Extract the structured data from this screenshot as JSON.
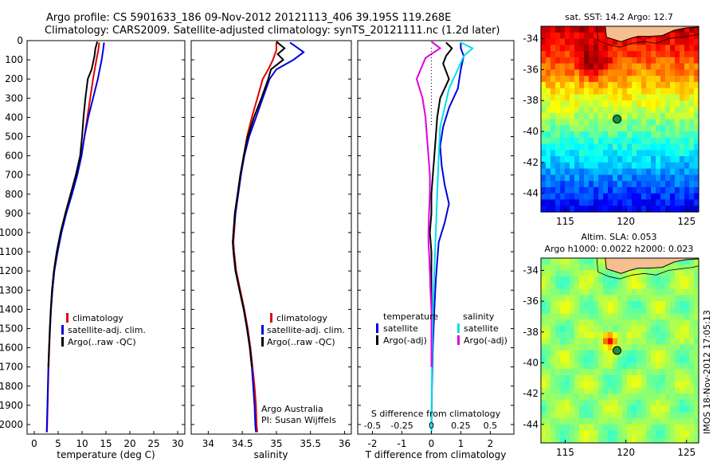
{
  "header": {
    "title_line1": "Argo profile: CS 5901633_186 09-Nov-2012 20121113_406 39.195S 119.268E",
    "title_line2": "Climatology: CARS2009. Satellite-adjusted climatology: synTS_20121111.nc (1.2d later)"
  },
  "side_stamp": "IMOS 18-Nov-2012 17:05:13",
  "colors": {
    "climatology": "#e00000",
    "satellite": "#0000dd",
    "argo": "#000000",
    "salinity_satellite": "#00e0e8",
    "salinity_argo": "#e000e0",
    "land": "#f5bf8f"
  },
  "chart_data": [
    {
      "id": "temperature",
      "type": "line",
      "xlabel": "temperature (deg C)",
      "ylabel": "",
      "xlim": [
        -1.5,
        31.5
      ],
      "ylim": [
        2050,
        0
      ],
      "xticks": [
        0,
        5,
        10,
        15,
        20,
        25,
        30
      ],
      "yticks": [
        0,
        100,
        200,
        300,
        400,
        500,
        600,
        700,
        800,
        900,
        1000,
        1100,
        1200,
        1300,
        1400,
        1500,
        1600,
        1700,
        1800,
        1900,
        2000
      ],
      "legend": [
        "climatology",
        "satellite-adj. clim.",
        "Argo(..raw -QC)"
      ],
      "series": [
        {
          "name": "climatology",
          "color": "#e00000",
          "points": [
            [
              13.6,
              10
            ],
            [
              13.4,
              50
            ],
            [
              13.0,
              100
            ],
            [
              12.3,
              200
            ],
            [
              11.7,
              300
            ],
            [
              11.1,
              400
            ],
            [
              10.5,
              500
            ],
            [
              9.8,
              600
            ],
            [
              8.9,
              700
            ],
            [
              7.8,
              800
            ],
            [
              6.6,
              900
            ],
            [
              5.6,
              1000
            ],
            [
              4.8,
              1100
            ],
            [
              4.2,
              1200
            ],
            [
              3.8,
              1300
            ],
            [
              3.5,
              1400
            ],
            [
              3.3,
              1500
            ],
            [
              3.15,
              1600
            ],
            [
              3.0,
              1700
            ],
            [
              2.9,
              1800
            ],
            [
              2.8,
              1900
            ],
            [
              2.7,
              2000
            ],
            [
              2.65,
              2040
            ]
          ]
        },
        {
          "name": "satellite-adj. clim.",
          "color": "#0000dd",
          "points": [
            [
              14.6,
              10
            ],
            [
              14.4,
              50
            ],
            [
              14.1,
              100
            ],
            [
              13.3,
              200
            ],
            [
              12.3,
              300
            ],
            [
              11.3,
              400
            ],
            [
              10.5,
              500
            ],
            [
              9.9,
              600
            ],
            [
              9.0,
              700
            ],
            [
              7.9,
              800
            ],
            [
              6.7,
              900
            ],
            [
              5.7,
              1000
            ],
            [
              4.9,
              1100
            ],
            [
              4.2,
              1200
            ],
            [
              3.8,
              1300
            ],
            [
              3.5,
              1400
            ],
            [
              3.3,
              1500
            ],
            [
              3.1,
              1600
            ],
            [
              2.95,
              1700
            ],
            [
              2.85,
              1800
            ],
            [
              2.75,
              1900
            ],
            [
              2.65,
              2000
            ],
            [
              2.6,
              2040
            ]
          ]
        },
        {
          "name": "Argo(..raw -QC)",
          "color": "#000000",
          "points": [
            [
              13.2,
              5
            ],
            [
              12.8,
              40
            ],
            [
              12.6,
              80
            ],
            [
              12.0,
              150
            ],
            [
              11.2,
              200
            ],
            [
              10.7,
              300
            ],
            [
              10.3,
              400
            ],
            [
              10.0,
              500
            ],
            [
              9.6,
              600
            ],
            [
              8.7,
              700
            ],
            [
              7.6,
              800
            ],
            [
              6.5,
              900
            ],
            [
              5.5,
              1000
            ],
            [
              4.7,
              1100
            ],
            [
              4.1,
              1200
            ],
            [
              3.7,
              1300
            ],
            [
              3.45,
              1400
            ],
            [
              3.25,
              1500
            ],
            [
              3.1,
              1600
            ],
            [
              2.95,
              1700
            ]
          ]
        }
      ]
    },
    {
      "id": "salinity",
      "type": "line",
      "xlabel": "salinity",
      "ylabel": "",
      "xlim": [
        33.75,
        36.1
      ],
      "ylim": [
        2050,
        0
      ],
      "xticks": [
        34,
        34.5,
        35,
        35.5,
        36
      ],
      "legend": [
        "climatology",
        "satellite-adj. clim.",
        "Argo(..raw -QC)"
      ],
      "series": [
        {
          "name": "climatology",
          "color": "#e00000",
          "points": [
            [
              35.0,
              10
            ],
            [
              35.0,
              50
            ],
            [
              34.95,
              100
            ],
            [
              34.88,
              150
            ],
            [
              34.8,
              200
            ],
            [
              34.72,
              300
            ],
            [
              34.64,
              400
            ],
            [
              34.57,
              500
            ],
            [
              34.52,
              600
            ],
            [
              34.48,
              700
            ],
            [
              34.44,
              800
            ],
            [
              34.4,
              900
            ],
            [
              34.38,
              1000
            ],
            [
              34.37,
              1050
            ],
            [
              34.38,
              1100
            ],
            [
              34.41,
              1200
            ],
            [
              34.47,
              1300
            ],
            [
              34.53,
              1400
            ],
            [
              34.58,
              1500
            ],
            [
              34.62,
              1600
            ],
            [
              34.65,
              1700
            ],
            [
              34.68,
              1800
            ],
            [
              34.7,
              1900
            ],
            [
              34.71,
              2000
            ],
            [
              34.72,
              2040
            ]
          ]
        },
        {
          "name": "satellite-adj. clim.",
          "color": "#0000dd",
          "points": [
            [
              35.2,
              10
            ],
            [
              35.28,
              30
            ],
            [
              35.4,
              60
            ],
            [
              35.25,
              100
            ],
            [
              35.0,
              150
            ],
            [
              34.9,
              200
            ],
            [
              34.8,
              300
            ],
            [
              34.7,
              400
            ],
            [
              34.6,
              500
            ],
            [
              34.53,
              600
            ],
            [
              34.48,
              700
            ],
            [
              34.44,
              800
            ],
            [
              34.4,
              900
            ],
            [
              34.37,
              1000
            ],
            [
              34.36,
              1050
            ],
            [
              34.37,
              1100
            ],
            [
              34.4,
              1200
            ],
            [
              34.46,
              1300
            ],
            [
              34.52,
              1400
            ],
            [
              34.57,
              1500
            ],
            [
              34.61,
              1600
            ],
            [
              34.64,
              1700
            ],
            [
              34.66,
              1800
            ],
            [
              34.68,
              1900
            ],
            [
              34.69,
              2000
            ],
            [
              34.7,
              2040
            ]
          ]
        },
        {
          "name": "Argo(..raw -QC)",
          "color": "#000000",
          "points": [
            [
              35.0,
              5
            ],
            [
              35.05,
              20
            ],
            [
              35.12,
              40
            ],
            [
              35.02,
              70
            ],
            [
              35.1,
              100
            ],
            [
              34.92,
              150
            ],
            [
              34.88,
              200
            ],
            [
              34.78,
              300
            ],
            [
              34.67,
              400
            ],
            [
              34.58,
              500
            ],
            [
              34.52,
              600
            ],
            [
              34.47,
              700
            ],
            [
              34.43,
              800
            ],
            [
              34.39,
              900
            ],
            [
              34.37,
              1000
            ],
            [
              34.36,
              1050
            ],
            [
              34.37,
              1100
            ],
            [
              34.4,
              1200
            ],
            [
              34.46,
              1300
            ],
            [
              34.52,
              1400
            ],
            [
              34.57,
              1500
            ],
            [
              34.61,
              1600
            ],
            [
              34.64,
              1700
            ]
          ]
        }
      ]
    },
    {
      "id": "difference",
      "type": "line",
      "xlabel": "T difference from climatology",
      "xlabel_top": "S difference from climatology",
      "xlim": [
        -2.5,
        2.8
      ],
      "ylim": [
        2050,
        0
      ],
      "xticks": [
        -2,
        -1,
        0,
        1,
        2
      ],
      "xticks_top": [
        -0.5,
        -0.25,
        0,
        0.25,
        0.5
      ],
      "xticks_top_labels": [
        "-0.5",
        "-0.25",
        "0",
        "0.25",
        "0.5"
      ],
      "legend_temperature_heading": "temperature",
      "legend_salinity_heading": "salinity",
      "legend_labels": [
        "satellite",
        "Argo(-adj)",
        "satellite",
        "Argo(-adj)"
      ],
      "series": [
        {
          "name": "temperature satellite",
          "color": "#0000dd",
          "points": [
            [
              1.0,
              10
            ],
            [
              1.0,
              40
            ],
            [
              1.1,
              80
            ],
            [
              1.0,
              150
            ],
            [
              0.9,
              250
            ],
            [
              0.6,
              350
            ],
            [
              0.4,
              450
            ],
            [
              0.3,
              550
            ],
            [
              0.35,
              650
            ],
            [
              0.45,
              750
            ],
            [
              0.6,
              850
            ],
            [
              0.45,
              950
            ],
            [
              0.25,
              1050
            ],
            [
              0.2,
              1150
            ],
            [
              0.15,
              1250
            ],
            [
              0.1,
              1400
            ],
            [
              0.05,
              1600
            ],
            [
              0.02,
              1800
            ],
            [
              0.0,
              2040
            ]
          ]
        },
        {
          "name": "temperature Argo(-adj)",
          "color": "#000000",
          "points": [
            [
              0.5,
              10
            ],
            [
              0.7,
              40
            ],
            [
              0.5,
              80
            ],
            [
              0.4,
              120
            ],
            [
              0.6,
              200
            ],
            [
              0.3,
              300
            ],
            [
              0.2,
              400
            ],
            [
              0.15,
              500
            ],
            [
              0.1,
              600
            ],
            [
              0.05,
              700
            ],
            [
              0.0,
              800
            ],
            [
              0.0,
              900
            ],
            [
              -0.05,
              1000
            ],
            [
              0.0,
              1100
            ],
            [
              0.0,
              1300
            ],
            [
              0.0,
              1500
            ],
            [
              0.0,
              1700
            ]
          ]
        },
        {
          "name": "salinity satellite",
          "color": "#00e0e8",
          "points": [
            [
              1.0,
              10
            ],
            [
              1.4,
              40
            ],
            [
              1.1,
              80
            ],
            [
              0.9,
              150
            ],
            [
              0.6,
              250
            ],
            [
              0.45,
              350
            ],
            [
              0.3,
              450
            ],
            [
              0.25,
              600
            ],
            [
              0.2,
              800
            ],
            [
              0.15,
              1000
            ],
            [
              0.1,
              1200
            ],
            [
              0.05,
              1400
            ],
            [
              0.02,
              1700
            ],
            [
              0.0,
              2040
            ]
          ]
        },
        {
          "name": "salinity Argo(-adj)",
          "color": "#e000e0",
          "points": [
            [
              0.0,
              5
            ],
            [
              0.3,
              40
            ],
            [
              -0.2,
              90
            ],
            [
              -0.5,
              200
            ],
            [
              -0.3,
              300
            ],
            [
              -0.2,
              400
            ],
            [
              -0.15,
              500
            ],
            [
              -0.1,
              600
            ],
            [
              -0.05,
              700
            ],
            [
              -0.05,
              800
            ],
            [
              -0.08,
              900
            ],
            [
              -0.1,
              1000
            ],
            [
              -0.1,
              1050
            ],
            [
              -0.08,
              1100
            ],
            [
              -0.05,
              1200
            ],
            [
              -0.03,
              1300
            ],
            [
              0.0,
              1400
            ],
            [
              0.0,
              1600
            ],
            [
              0.0,
              1700
            ]
          ]
        }
      ]
    },
    {
      "id": "sst_map",
      "type": "heatmap",
      "title": "sat. SST: 14.2 Argo: 12.7",
      "xlim": [
        113,
        126
      ],
      "ylim": [
        -45.2,
        -33.2
      ],
      "xticks": [
        115,
        120,
        125
      ],
      "yticks": [
        -34,
        -36,
        -38,
        -40,
        -42,
        -44
      ],
      "marker": [
        119.27,
        -39.2
      ]
    },
    {
      "id": "sla_map",
      "type": "heatmap",
      "title_line1": "Altim. SLA: 0.053",
      "title_line2": "Argo h1000: 0.0022 h2000: 0.023",
      "xlim": [
        113,
        126
      ],
      "ylim": [
        -45.2,
        -33.2
      ],
      "xticks": [
        115,
        120,
        125
      ],
      "yticks": [
        -34,
        -36,
        -38,
        -40,
        -42,
        -44
      ],
      "marker": [
        119.27,
        -39.2
      ]
    }
  ],
  "text_annotations": {
    "credit_line1": "Argo Australia",
    "credit_line2": "PI: Susan Wijffels"
  }
}
